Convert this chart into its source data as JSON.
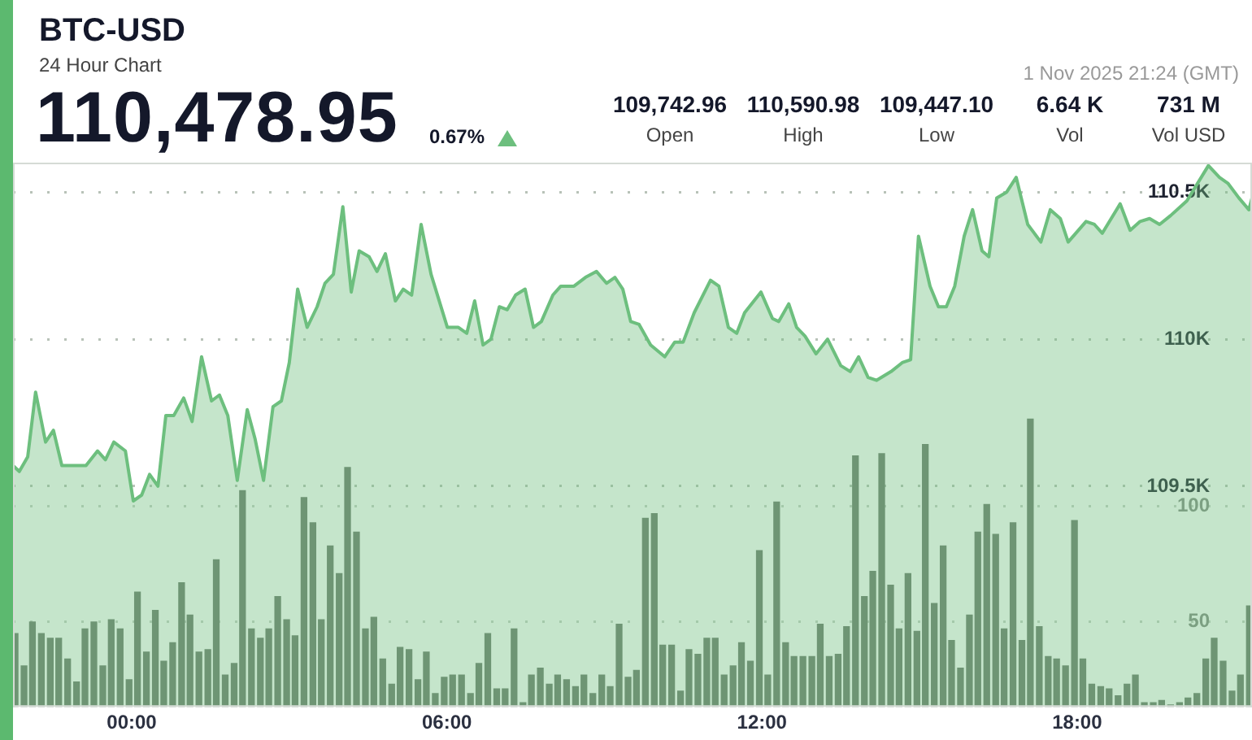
{
  "chart_data": {
    "type": "area",
    "title": "BTC-USD",
    "subtitle": "24 Hour Chart",
    "annotations": [
      "110,478.95",
      "0.67%",
      "109,742.96",
      "Open",
      "110,590.98",
      "High",
      "109,447.10",
      "Low",
      "6.64 K",
      "Vol",
      "731 M",
      "Vol USD",
      "1 Nov 2025 21:24 (GMT)"
    ],
    "xlim": [
      -2.26,
      21.33
    ],
    "xticks": [
      {
        "value": 0,
        "label": "00:00"
      },
      {
        "value": 6,
        "label": "06:00"
      },
      {
        "value": 12,
        "label": "12:00"
      },
      {
        "value": 18,
        "label": "18:00"
      }
    ],
    "ylim": [
      108750,
      110600
    ],
    "yticks": [
      {
        "value": 109500,
        "label": "109.5K"
      },
      {
        "value": 110000,
        "label": "110K"
      },
      {
        "value": 110500,
        "label": "110.5K"
      }
    ],
    "y2lim": [
      13,
      249
    ],
    "y2ticks": [
      50,
      100
    ],
    "grid": "y",
    "marker": "none",
    "series": [
      {
        "color": "#6dbf7e",
        "x": [
          -2.26,
          -2.14,
          -1.98,
          -1.83,
          -1.64,
          -1.49,
          -1.33,
          -0.87,
          -0.65,
          -0.5,
          -0.34,
          -0.12,
          0.03,
          0.19,
          0.34,
          0.5,
          0.65,
          0.8,
          0.99,
          1.15,
          1.33,
          1.52,
          1.67,
          1.83,
          2.01,
          2.2,
          2.35,
          2.51,
          2.69,
          2.85,
          3.0,
          3.16,
          3.34,
          3.53,
          3.68,
          3.84,
          4.02,
          4.18,
          4.33,
          4.52,
          4.67,
          4.83,
          5.02,
          5.17,
          5.33,
          5.51,
          5.7,
          6.01,
          6.22,
          6.38,
          6.53,
          6.69,
          6.84,
          7.0,
          7.15,
          7.31,
          7.49,
          7.65,
          7.8,
          8.02,
          8.17,
          8.42,
          8.64,
          8.85,
          9.04,
          9.2,
          9.35,
          9.5,
          9.66,
          9.88,
          10.15,
          10.34,
          10.5,
          10.71,
          11.02,
          11.18,
          11.36,
          11.52,
          11.67,
          11.98,
          12.2,
          12.32,
          12.51,
          12.66,
          12.82,
          13.03,
          13.25,
          13.5,
          13.68,
          13.84,
          14.02,
          14.18,
          14.46,
          14.67,
          14.83,
          14.98,
          15.2,
          15.36,
          15.51,
          15.67,
          15.85,
          16.01,
          16.19,
          16.32,
          16.47,
          16.66,
          16.84,
          17.06,
          17.31,
          17.49,
          17.68,
          17.83,
          18.17,
          18.33,
          18.48,
          18.82,
          19.01,
          19.2,
          19.38,
          19.57,
          19.78,
          20.09,
          20.5,
          20.71,
          20.87,
          21.08,
          21.27,
          21.33
        ],
        "values": [
          109570,
          109550,
          109600,
          109820,
          109650,
          109690,
          109570,
          109570,
          109620,
          109590,
          109650,
          109620,
          109450,
          109470,
          109540,
          109500,
          109740,
          109740,
          109800,
          109720,
          109940,
          109790,
          109810,
          109740,
          109520,
          109760,
          109660,
          109520,
          109770,
          109790,
          109920,
          110170,
          110040,
          110110,
          110190,
          110220,
          110450,
          110160,
          110300,
          110280,
          110230,
          110290,
          110130,
          110170,
          110150,
          110390,
          110220,
          110040,
          110040,
          110020,
          110130,
          109980,
          110000,
          110110,
          110100,
          110150,
          110170,
          110040,
          110060,
          110150,
          110180,
          110180,
          110210,
          110230,
          110190,
          110210,
          110170,
          110060,
          110050,
          109980,
          109940,
          109990,
          109990,
          110090,
          110200,
          110180,
          110040,
          110020,
          110090,
          110160,
          110070,
          110060,
          110120,
          110040,
          110010,
          109950,
          110000,
          109910,
          109890,
          109940,
          109870,
          109860,
          109890,
          109920,
          109930,
          110350,
          110180,
          110110,
          110110,
          110180,
          110350,
          110440,
          110300,
          110280,
          110480,
          110500,
          110550,
          110390,
          110330,
          110440,
          110410,
          110330,
          110400,
          110390,
          110360,
          110460,
          110370,
          110400,
          110410,
          110390,
          110420,
          110470,
          110590,
          110550,
          110530,
          110480,
          110440,
          110480
        ]
      },
      {
        "type": "bar",
        "axis": "y2",
        "color": "#6f7b6f",
        "x": [
          -2.22,
          -2.05,
          -1.89,
          -1.72,
          -1.55,
          -1.39,
          -1.22,
          -1.05,
          -0.89,
          -0.72,
          -0.55,
          -0.39,
          -0.22,
          -0.05,
          0.11,
          0.28,
          0.45,
          0.61,
          0.78,
          0.95,
          1.11,
          1.28,
          1.45,
          1.61,
          1.78,
          1.95,
          2.11,
          2.28,
          2.45,
          2.61,
          2.78,
          2.95,
          3.11,
          3.28,
          3.45,
          3.61,
          3.78,
          3.95,
          4.11,
          4.28,
          4.45,
          4.61,
          4.78,
          4.95,
          5.11,
          5.28,
          5.45,
          5.61,
          5.78,
          5.95,
          6.11,
          6.28,
          6.45,
          6.61,
          6.78,
          6.95,
          7.11,
          7.28,
          7.45,
          7.61,
          7.78,
          7.95,
          8.11,
          8.28,
          8.45,
          8.61,
          8.78,
          8.95,
          9.11,
          9.28,
          9.45,
          9.61,
          9.78,
          9.95,
          10.11,
          10.28,
          10.45,
          10.61,
          10.78,
          10.95,
          11.11,
          11.28,
          11.45,
          11.61,
          11.78,
          11.95,
          12.11,
          12.28,
          12.45,
          12.61,
          12.78,
          12.95,
          13.11,
          13.28,
          13.45,
          13.61,
          13.78,
          13.95,
          14.11,
          14.28,
          14.45,
          14.61,
          14.78,
          14.95,
          15.11,
          15.28,
          15.45,
          15.61,
          15.78,
          15.95,
          16.11,
          16.28,
          16.45,
          16.61,
          16.78,
          16.95,
          17.11,
          17.28,
          17.45,
          17.61,
          17.78,
          17.95,
          18.11,
          18.28,
          18.45,
          18.61,
          18.78,
          18.95,
          19.11,
          19.28,
          19.45,
          19.61,
          19.78,
          19.95,
          20.11,
          20.28,
          20.45,
          20.61,
          20.78,
          20.95,
          21.11,
          21.28
        ],
        "values": [
          45,
          31,
          50,
          45,
          43,
          43,
          34,
          24,
          47,
          50,
          31,
          51,
          47,
          25,
          63,
          37,
          55,
          33,
          41,
          67,
          53,
          37,
          38,
          77,
          27,
          32,
          107,
          47,
          43,
          47,
          61,
          51,
          44,
          104,
          93,
          51,
          83,
          71,
          117,
          89,
          47,
          52,
          34,
          23,
          39,
          38,
          25,
          37,
          19,
          26,
          27,
          27,
          19,
          32,
          45,
          21,
          21,
          47,
          15,
          27,
          30,
          23,
          27,
          25,
          22,
          27,
          19,
          27,
          22,
          49,
          26,
          29,
          95,
          97,
          40,
          40,
          20,
          38,
          36,
          43,
          43,
          27,
          31,
          41,
          33,
          81,
          27,
          102,
          41,
          35,
          35,
          35,
          49,
          35,
          36,
          48,
          122,
          61,
          72,
          123,
          66,
          47,
          71,
          46,
          127,
          58,
          83,
          42,
          30,
          53,
          89,
          101,
          88,
          47,
          93,
          42,
          138,
          48,
          35,
          34,
          31,
          94,
          34,
          23,
          22,
          21,
          18,
          23,
          27,
          15,
          15,
          16,
          14,
          15,
          17,
          19,
          34,
          43,
          33,
          20,
          27,
          57
        ]
      }
    ]
  }
}
